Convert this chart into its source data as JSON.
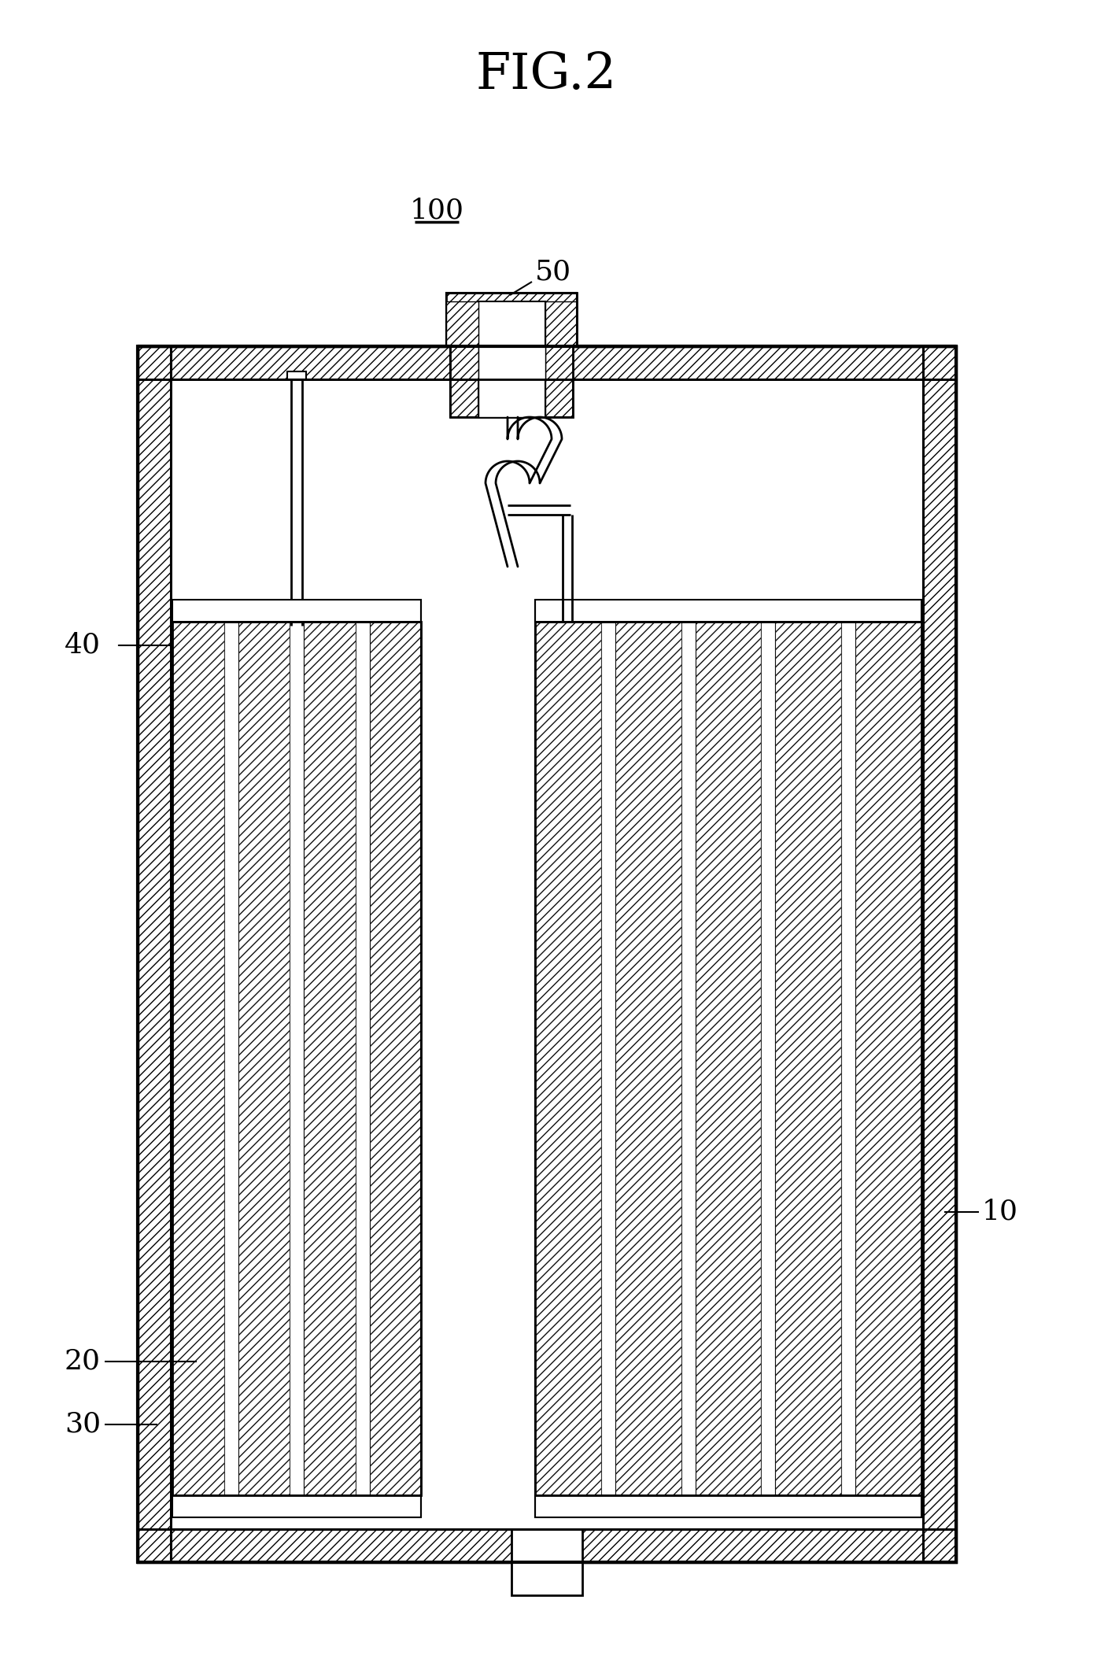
{
  "title": "FIG.2",
  "label_100": "100",
  "label_50": "50",
  "label_40": "40",
  "label_20": "20",
  "label_30": "30",
  "label_10": "10",
  "bg_color": "#ffffff",
  "line_color": "#000000",
  "fig_width": 13.89,
  "fig_height": 21.08,
  "dpi": 100
}
